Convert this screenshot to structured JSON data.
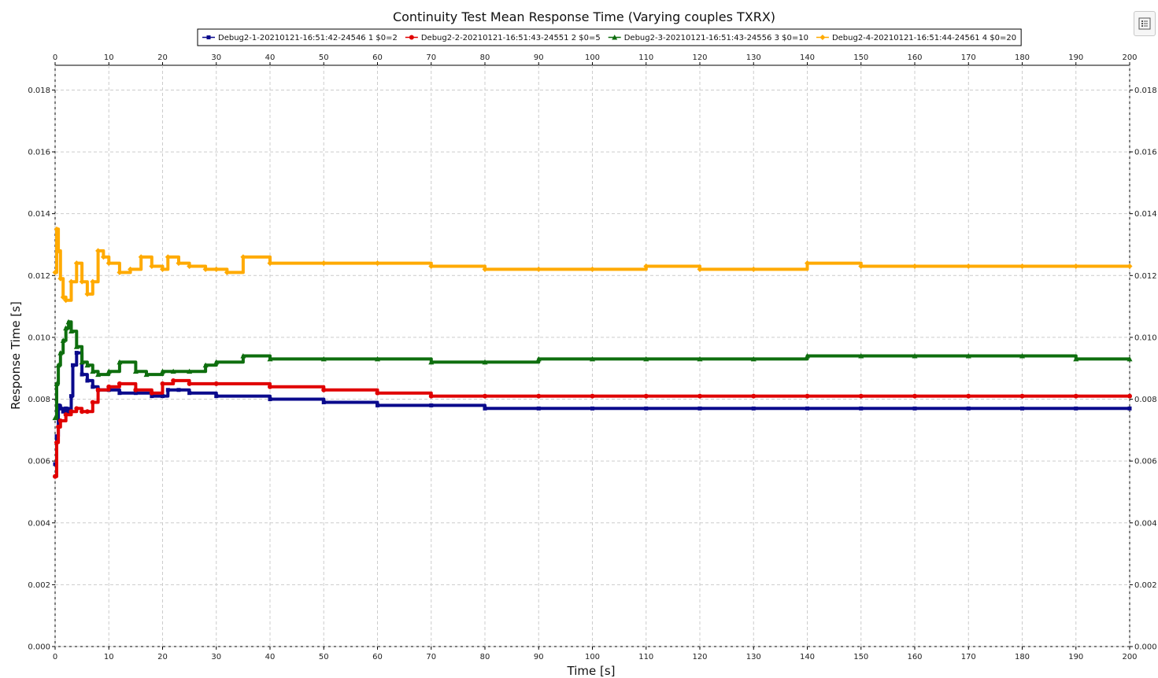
{
  "chart_data": {
    "type": "line",
    "title": "Continuity Test Mean Response Time (Varying couples TXRX)",
    "xlabel": "Time [s]",
    "ylabel": "Response Time [s]",
    "xlim": [
      0,
      200
    ],
    "ylim": [
      0,
      0.0188
    ],
    "x_ticks": [
      0,
      10,
      20,
      30,
      40,
      50,
      60,
      70,
      80,
      90,
      100,
      110,
      120,
      130,
      140,
      150,
      160,
      170,
      180,
      190,
      200
    ],
    "y_ticks": [
      0.0,
      0.002,
      0.004,
      0.006,
      0.008,
      0.01,
      0.012,
      0.014,
      0.016,
      0.018
    ],
    "y_tick_labels": [
      "0.000",
      "0.002",
      "0.004",
      "0.006",
      "0.008",
      "0.010",
      "0.012",
      "0.014",
      "0.016",
      "0.018"
    ],
    "grid": true,
    "legend_position": "top-center",
    "series": [
      {
        "name": "Debug2-1-20210121-16:51:42-24546 1 $0=2",
        "color": "#0a0a8c",
        "marker": "square",
        "x": [
          0,
          0.3,
          0.6,
          1,
          1.5,
          2,
          2.5,
          3,
          3.3,
          4,
          5,
          6,
          7,
          8,
          10,
          12,
          15,
          18,
          20,
          21,
          23,
          25,
          30,
          40,
          50,
          60,
          70,
          80,
          90,
          100,
          110,
          120,
          130,
          140,
          150,
          160,
          170,
          180,
          190,
          200
        ],
        "y": [
          0.0059,
          0.0068,
          0.0078,
          0.0077,
          0.0076,
          0.0077,
          0.0076,
          0.0081,
          0.0091,
          0.0095,
          0.0088,
          0.0086,
          0.0084,
          0.0083,
          0.0083,
          0.0082,
          0.0082,
          0.0081,
          0.0081,
          0.0083,
          0.0083,
          0.0082,
          0.0081,
          0.008,
          0.0079,
          0.0078,
          0.0078,
          0.0077,
          0.0077,
          0.0077,
          0.0077,
          0.0077,
          0.0077,
          0.0077,
          0.0077,
          0.0077,
          0.0077,
          0.0077,
          0.0077,
          0.0077
        ]
      },
      {
        "name": "Debug2-2-20210121-16:51:43-24551 2 $0=5",
        "color": "#e00000",
        "marker": "circle",
        "x": [
          0,
          0.3,
          0.6,
          1,
          2,
          3,
          4,
          5,
          6,
          7,
          8,
          10,
          12,
          15,
          18,
          20,
          22,
          25,
          30,
          40,
          50,
          60,
          70,
          80,
          90,
          100,
          110,
          120,
          130,
          140,
          150,
          160,
          170,
          180,
          190,
          200
        ],
        "y": [
          0.0055,
          0.0066,
          0.0071,
          0.0073,
          0.0075,
          0.0076,
          0.0077,
          0.0076,
          0.0076,
          0.0079,
          0.0083,
          0.0084,
          0.0085,
          0.0083,
          0.0082,
          0.0085,
          0.0086,
          0.0085,
          0.0085,
          0.0084,
          0.0083,
          0.0082,
          0.0081,
          0.0081,
          0.0081,
          0.0081,
          0.0081,
          0.0081,
          0.0081,
          0.0081,
          0.0081,
          0.0081,
          0.0081,
          0.0081,
          0.0081,
          0.0081
        ]
      },
      {
        "name": "Debug2-3-20210121-16:51:43-24556 3 $0=10",
        "color": "#0e6e0e",
        "marker": "triangle",
        "x": [
          0,
          0.3,
          0.6,
          1,
          1.5,
          2,
          2.5,
          3,
          4,
          5,
          6,
          7,
          8,
          10,
          12,
          15,
          17,
          20,
          22,
          25,
          28,
          30,
          35,
          40,
          50,
          60,
          70,
          80,
          90,
          100,
          110,
          120,
          130,
          140,
          150,
          160,
          170,
          180,
          190,
          200
        ],
        "y": [
          0.0074,
          0.0085,
          0.0091,
          0.0095,
          0.0099,
          0.0103,
          0.0105,
          0.0102,
          0.0097,
          0.0092,
          0.0091,
          0.0089,
          0.0088,
          0.0089,
          0.0092,
          0.0089,
          0.0088,
          0.0089,
          0.0089,
          0.0089,
          0.0091,
          0.0092,
          0.0094,
          0.0093,
          0.0093,
          0.0093,
          0.0092,
          0.0092,
          0.0093,
          0.0093,
          0.0093,
          0.0093,
          0.0093,
          0.0094,
          0.0094,
          0.0094,
          0.0094,
          0.0094,
          0.0093,
          0.0093
        ]
      },
      {
        "name": "Debug2-4-20210121-16:51:44-24561 4 $0=20",
        "color": "#ffaa00",
        "marker": "diamond",
        "x": [
          0,
          0.3,
          0.6,
          1,
          1.5,
          2,
          3,
          4,
          5,
          6,
          7,
          8,
          9,
          10,
          12,
          14,
          16,
          18,
          20,
          21,
          23,
          25,
          28,
          30,
          32,
          35,
          40,
          50,
          60,
          70,
          80,
          90,
          100,
          110,
          120,
          130,
          140,
          150,
          160,
          170,
          180,
          190,
          200
        ],
        "y": [
          0.0121,
          0.0135,
          0.0128,
          0.0119,
          0.0113,
          0.0112,
          0.0118,
          0.0124,
          0.0118,
          0.0114,
          0.0118,
          0.0128,
          0.0126,
          0.0124,
          0.0121,
          0.0122,
          0.0126,
          0.0123,
          0.0122,
          0.0126,
          0.0124,
          0.0123,
          0.0122,
          0.0122,
          0.0121,
          0.0126,
          0.0124,
          0.0124,
          0.0124,
          0.0123,
          0.0122,
          0.0122,
          0.0122,
          0.0123,
          0.0122,
          0.0122,
          0.0124,
          0.0123,
          0.0123,
          0.0123,
          0.0123,
          0.0123,
          0.0123
        ]
      }
    ]
  },
  "ui": {
    "menu_icon": "list-menu-icon"
  }
}
